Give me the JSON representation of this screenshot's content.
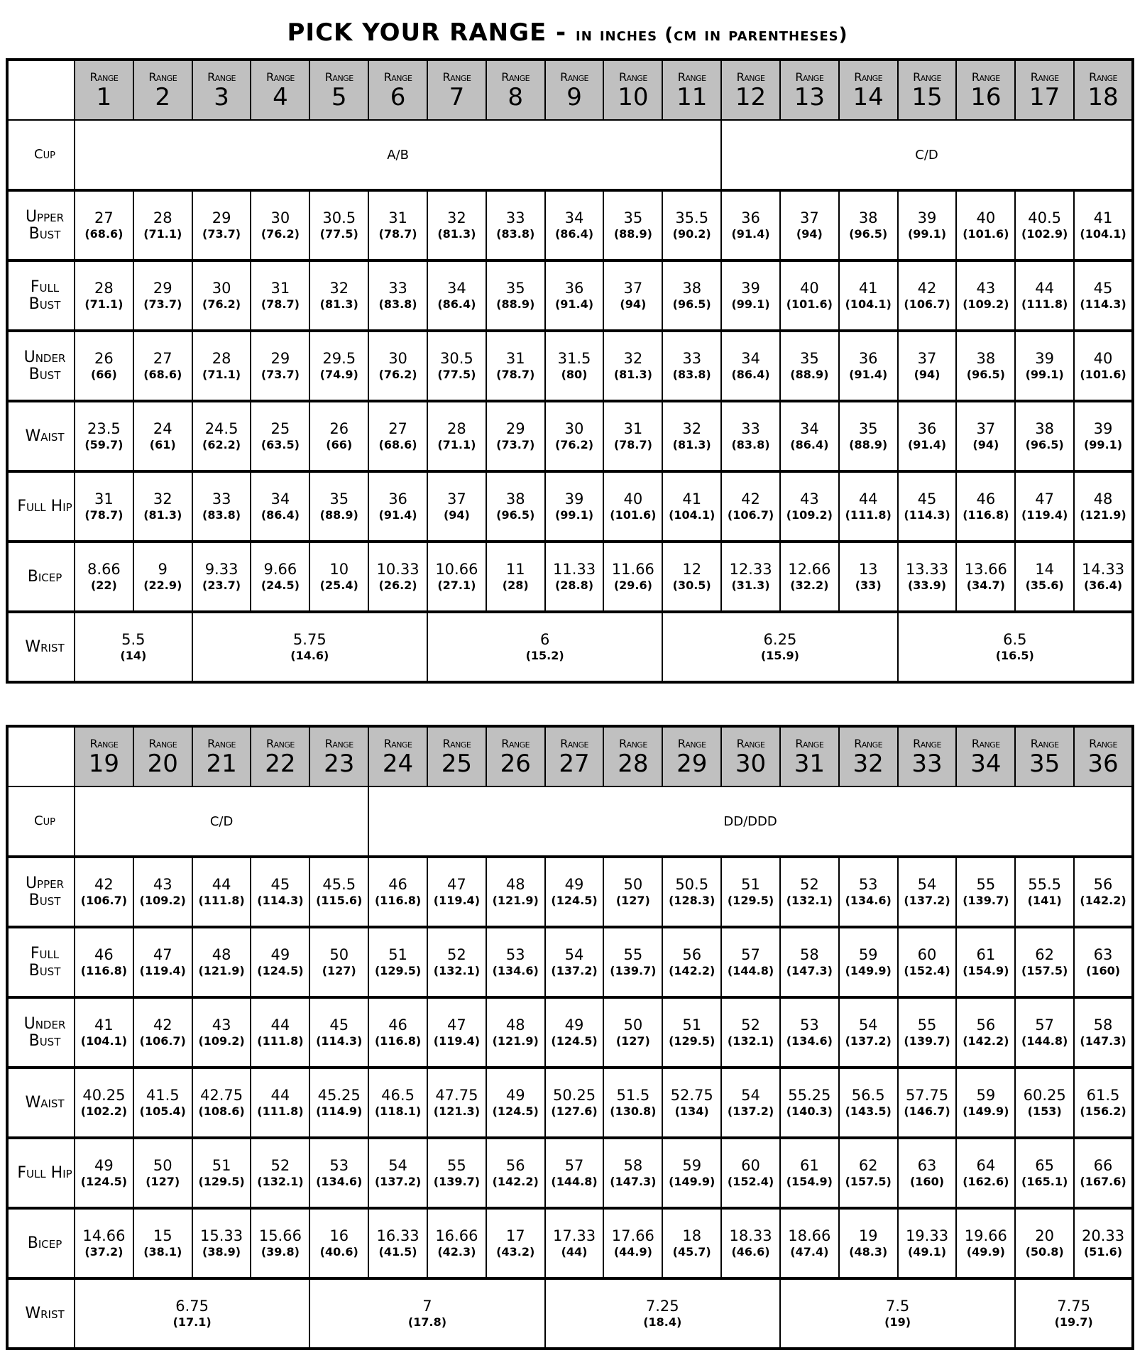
{
  "title": {
    "main": "PICK YOUR RANGE -",
    "sub": "in inches (cm in parentheses)"
  },
  "range_word": "Range",
  "row_labels": {
    "cup": "Cup",
    "upper_bust": "Upper Bust",
    "full_bust": "Full Bust",
    "under_bust": "Under Bust",
    "waist": "Waist",
    "full_hip": "Full Hip",
    "bicep": "Bicep",
    "wrist": "Wrist"
  },
  "header_color": "#c0c0c0",
  "tables": [
    {
      "ranges": [
        "1",
        "2",
        "3",
        "4",
        "5",
        "6",
        "7",
        "8",
        "9",
        "10",
        "11",
        "12",
        "13",
        "14",
        "15",
        "16",
        "17",
        "18"
      ],
      "cup": [
        {
          "label": "A/B",
          "span": 11
        },
        {
          "label": "C/D",
          "span": 7
        }
      ],
      "rows": {
        "upper_bust": [
          [
            "27",
            "(68.6)"
          ],
          [
            "28",
            "(71.1)"
          ],
          [
            "29",
            "(73.7)"
          ],
          [
            "30",
            "(76.2)"
          ],
          [
            "30.5",
            "(77.5)"
          ],
          [
            "31",
            "(78.7)"
          ],
          [
            "32",
            "(81.3)"
          ],
          [
            "33",
            "(83.8)"
          ],
          [
            "34",
            "(86.4)"
          ],
          [
            "35",
            "(88.9)"
          ],
          [
            "35.5",
            "(90.2)"
          ],
          [
            "36",
            "(91.4)"
          ],
          [
            "37",
            "(94)"
          ],
          [
            "38",
            "(96.5)"
          ],
          [
            "39",
            "(99.1)"
          ],
          [
            "40",
            "(101.6)"
          ],
          [
            "40.5",
            "(102.9)"
          ],
          [
            "41",
            "(104.1)"
          ]
        ],
        "full_bust": [
          [
            "28",
            "(71.1)"
          ],
          [
            "29",
            "(73.7)"
          ],
          [
            "30",
            "(76.2)"
          ],
          [
            "31",
            "(78.7)"
          ],
          [
            "32",
            "(81.3)"
          ],
          [
            "33",
            "(83.8)"
          ],
          [
            "34",
            "(86.4)"
          ],
          [
            "35",
            "(88.9)"
          ],
          [
            "36",
            "(91.4)"
          ],
          [
            "37",
            "(94)"
          ],
          [
            "38",
            "(96.5)"
          ],
          [
            "39",
            "(99.1)"
          ],
          [
            "40",
            "(101.6)"
          ],
          [
            "41",
            "(104.1)"
          ],
          [
            "42",
            "(106.7)"
          ],
          [
            "43",
            "(109.2)"
          ],
          [
            "44",
            "(111.8)"
          ],
          [
            "45",
            "(114.3)"
          ]
        ],
        "under_bust": [
          [
            "26",
            "(66)"
          ],
          [
            "27",
            "(68.6)"
          ],
          [
            "28",
            "(71.1)"
          ],
          [
            "29",
            "(73.7)"
          ],
          [
            "29.5",
            "(74.9)"
          ],
          [
            "30",
            "(76.2)"
          ],
          [
            "30.5",
            "(77.5)"
          ],
          [
            "31",
            "(78.7)"
          ],
          [
            "31.5",
            "(80)"
          ],
          [
            "32",
            "(81.3)"
          ],
          [
            "33",
            "(83.8)"
          ],
          [
            "34",
            "(86.4)"
          ],
          [
            "35",
            "(88.9)"
          ],
          [
            "36",
            "(91.4)"
          ],
          [
            "37",
            "(94)"
          ],
          [
            "38",
            "(96.5)"
          ],
          [
            "39",
            "(99.1)"
          ],
          [
            "40",
            "(101.6)"
          ]
        ],
        "waist": [
          [
            "23.5",
            "(59.7)"
          ],
          [
            "24",
            "(61)"
          ],
          [
            "24.5",
            "(62.2)"
          ],
          [
            "25",
            "(63.5)"
          ],
          [
            "26",
            "(66)"
          ],
          [
            "27",
            "(68.6)"
          ],
          [
            "28",
            "(71.1)"
          ],
          [
            "29",
            "(73.7)"
          ],
          [
            "30",
            "(76.2)"
          ],
          [
            "31",
            "(78.7)"
          ],
          [
            "32",
            "(81.3)"
          ],
          [
            "33",
            "(83.8)"
          ],
          [
            "34",
            "(86.4)"
          ],
          [
            "35",
            "(88.9)"
          ],
          [
            "36",
            "(91.4)"
          ],
          [
            "37",
            "(94)"
          ],
          [
            "38",
            "(96.5)"
          ],
          [
            "39",
            "(99.1)"
          ]
        ],
        "full_hip": [
          [
            "31",
            "(78.7)"
          ],
          [
            "32",
            "(81.3)"
          ],
          [
            "33",
            "(83.8)"
          ],
          [
            "34",
            "(86.4)"
          ],
          [
            "35",
            "(88.9)"
          ],
          [
            "36",
            "(91.4)"
          ],
          [
            "37",
            "(94)"
          ],
          [
            "38",
            "(96.5)"
          ],
          [
            "39",
            "(99.1)"
          ],
          [
            "40",
            "(101.6)"
          ],
          [
            "41",
            "(104.1)"
          ],
          [
            "42",
            "(106.7)"
          ],
          [
            "43",
            "(109.2)"
          ],
          [
            "44",
            "(111.8)"
          ],
          [
            "45",
            "(114.3)"
          ],
          [
            "46",
            "(116.8)"
          ],
          [
            "47",
            "(119.4)"
          ],
          [
            "48",
            "(121.9)"
          ]
        ],
        "bicep": [
          [
            "8.66",
            "(22)"
          ],
          [
            "9",
            "(22.9)"
          ],
          [
            "9.33",
            "(23.7)"
          ],
          [
            "9.66",
            "(24.5)"
          ],
          [
            "10",
            "(25.4)"
          ],
          [
            "10.33",
            "(26.2)"
          ],
          [
            "10.66",
            "(27.1)"
          ],
          [
            "11",
            "(28)"
          ],
          [
            "11.33",
            "(28.8)"
          ],
          [
            "11.66",
            "(29.6)"
          ],
          [
            "12",
            "(30.5)"
          ],
          [
            "12.33",
            "(31.3)"
          ],
          [
            "12.66",
            "(32.2)"
          ],
          [
            "13",
            "(33)"
          ],
          [
            "13.33",
            "(33.9)"
          ],
          [
            "13.66",
            "(34.7)"
          ],
          [
            "14",
            "(35.6)"
          ],
          [
            "14.33",
            "(36.4)"
          ]
        ]
      },
      "wrist": [
        {
          "in": "5.5",
          "cm": "(14)",
          "span": 2
        },
        {
          "in": "5.75",
          "cm": "(14.6)",
          "span": 4
        },
        {
          "in": "6",
          "cm": "(15.2)",
          "span": 4
        },
        {
          "in": "6.25",
          "cm": "(15.9)",
          "span": 4
        },
        {
          "in": "6.5",
          "cm": "(16.5)",
          "span": 4
        }
      ]
    },
    {
      "ranges": [
        "19",
        "20",
        "21",
        "22",
        "23",
        "24",
        "25",
        "26",
        "27",
        "28",
        "29",
        "30",
        "31",
        "32",
        "33",
        "34",
        "35",
        "36"
      ],
      "cup": [
        {
          "label": "C/D",
          "span": 5
        },
        {
          "label": "DD/DDD",
          "span": 13
        }
      ],
      "rows": {
        "upper_bust": [
          [
            "42",
            "(106.7)"
          ],
          [
            "43",
            "(109.2)"
          ],
          [
            "44",
            "(111.8)"
          ],
          [
            "45",
            "(114.3)"
          ],
          [
            "45.5",
            "(115.6)"
          ],
          [
            "46",
            "(116.8)"
          ],
          [
            "47",
            "(119.4)"
          ],
          [
            "48",
            "(121.9)"
          ],
          [
            "49",
            "(124.5)"
          ],
          [
            "50",
            "(127)"
          ],
          [
            "50.5",
            "(128.3)"
          ],
          [
            "51",
            "(129.5)"
          ],
          [
            "52",
            "(132.1)"
          ],
          [
            "53",
            "(134.6)"
          ],
          [
            "54",
            "(137.2)"
          ],
          [
            "55",
            "(139.7)"
          ],
          [
            "55.5",
            "(141)"
          ],
          [
            "56",
            "(142.2)"
          ]
        ],
        "full_bust": [
          [
            "46",
            "(116.8)"
          ],
          [
            "47",
            "(119.4)"
          ],
          [
            "48",
            "(121.9)"
          ],
          [
            "49",
            "(124.5)"
          ],
          [
            "50",
            "(127)"
          ],
          [
            "51",
            "(129.5)"
          ],
          [
            "52",
            "(132.1)"
          ],
          [
            "53",
            "(134.6)"
          ],
          [
            "54",
            "(137.2)"
          ],
          [
            "55",
            "(139.7)"
          ],
          [
            "56",
            "(142.2)"
          ],
          [
            "57",
            "(144.8)"
          ],
          [
            "58",
            "(147.3)"
          ],
          [
            "59",
            "(149.9)"
          ],
          [
            "60",
            "(152.4)"
          ],
          [
            "61",
            "(154.9)"
          ],
          [
            "62",
            "(157.5)"
          ],
          [
            "63",
            "(160)"
          ]
        ],
        "under_bust": [
          [
            "41",
            "(104.1)"
          ],
          [
            "42",
            "(106.7)"
          ],
          [
            "43",
            "(109.2)"
          ],
          [
            "44",
            "(111.8)"
          ],
          [
            "45",
            "(114.3)"
          ],
          [
            "46",
            "(116.8)"
          ],
          [
            "47",
            "(119.4)"
          ],
          [
            "48",
            "(121.9)"
          ],
          [
            "49",
            "(124.5)"
          ],
          [
            "50",
            "(127)"
          ],
          [
            "51",
            "(129.5)"
          ],
          [
            "52",
            "(132.1)"
          ],
          [
            "53",
            "(134.6)"
          ],
          [
            "54",
            "(137.2)"
          ],
          [
            "55",
            "(139.7)"
          ],
          [
            "56",
            "(142.2)"
          ],
          [
            "57",
            "(144.8)"
          ],
          [
            "58",
            "(147.3)"
          ]
        ],
        "waist": [
          [
            "40.25",
            "(102.2)"
          ],
          [
            "41.5",
            "(105.4)"
          ],
          [
            "42.75",
            "(108.6)"
          ],
          [
            "44",
            "(111.8)"
          ],
          [
            "45.25",
            "(114.9)"
          ],
          [
            "46.5",
            "(118.1)"
          ],
          [
            "47.75",
            "(121.3)"
          ],
          [
            "49",
            "(124.5)"
          ],
          [
            "50.25",
            "(127.6)"
          ],
          [
            "51.5",
            "(130.8)"
          ],
          [
            "52.75",
            "(134)"
          ],
          [
            "54",
            "(137.2)"
          ],
          [
            "55.25",
            "(140.3)"
          ],
          [
            "56.5",
            "(143.5)"
          ],
          [
            "57.75",
            "(146.7)"
          ],
          [
            "59",
            "(149.9)"
          ],
          [
            "60.25",
            "(153)"
          ],
          [
            "61.5",
            "(156.2)"
          ]
        ],
        "full_hip": [
          [
            "49",
            "(124.5)"
          ],
          [
            "50",
            "(127)"
          ],
          [
            "51",
            "(129.5)"
          ],
          [
            "52",
            "(132.1)"
          ],
          [
            "53",
            "(134.6)"
          ],
          [
            "54",
            "(137.2)"
          ],
          [
            "55",
            "(139.7)"
          ],
          [
            "56",
            "(142.2)"
          ],
          [
            "57",
            "(144.8)"
          ],
          [
            "58",
            "(147.3)"
          ],
          [
            "59",
            "(149.9)"
          ],
          [
            "60",
            "(152.4)"
          ],
          [
            "61",
            "(154.9)"
          ],
          [
            "62",
            "(157.5)"
          ],
          [
            "63",
            "(160)"
          ],
          [
            "64",
            "(162.6)"
          ],
          [
            "65",
            "(165.1)"
          ],
          [
            "66",
            "(167.6)"
          ]
        ],
        "bicep": [
          [
            "14.66",
            "(37.2)"
          ],
          [
            "15",
            "(38.1)"
          ],
          [
            "15.33",
            "(38.9)"
          ],
          [
            "15.66",
            "(39.8)"
          ],
          [
            "16",
            "(40.6)"
          ],
          [
            "16.33",
            "(41.5)"
          ],
          [
            "16.66",
            "(42.3)"
          ],
          [
            "17",
            "(43.2)"
          ],
          [
            "17.33",
            "(44)"
          ],
          [
            "17.66",
            "(44.9)"
          ],
          [
            "18",
            "(45.7)"
          ],
          [
            "18.33",
            "(46.6)"
          ],
          [
            "18.66",
            "(47.4)"
          ],
          [
            "19",
            "(48.3)"
          ],
          [
            "19.33",
            "(49.1)"
          ],
          [
            "19.66",
            "(49.9)"
          ],
          [
            "20",
            "(50.8)"
          ],
          [
            "20.33",
            "(51.6)"
          ]
        ]
      },
      "wrist": [
        {
          "in": "6.75",
          "cm": "(17.1)",
          "span": 4
        },
        {
          "in": "7",
          "cm": "(17.8)",
          "span": 4
        },
        {
          "in": "7.25",
          "cm": "(18.4)",
          "span": 4
        },
        {
          "in": "7.5",
          "cm": "(19)",
          "span": 4
        },
        {
          "in": "7.75",
          "cm": "(19.7)",
          "span": 2
        }
      ]
    }
  ]
}
